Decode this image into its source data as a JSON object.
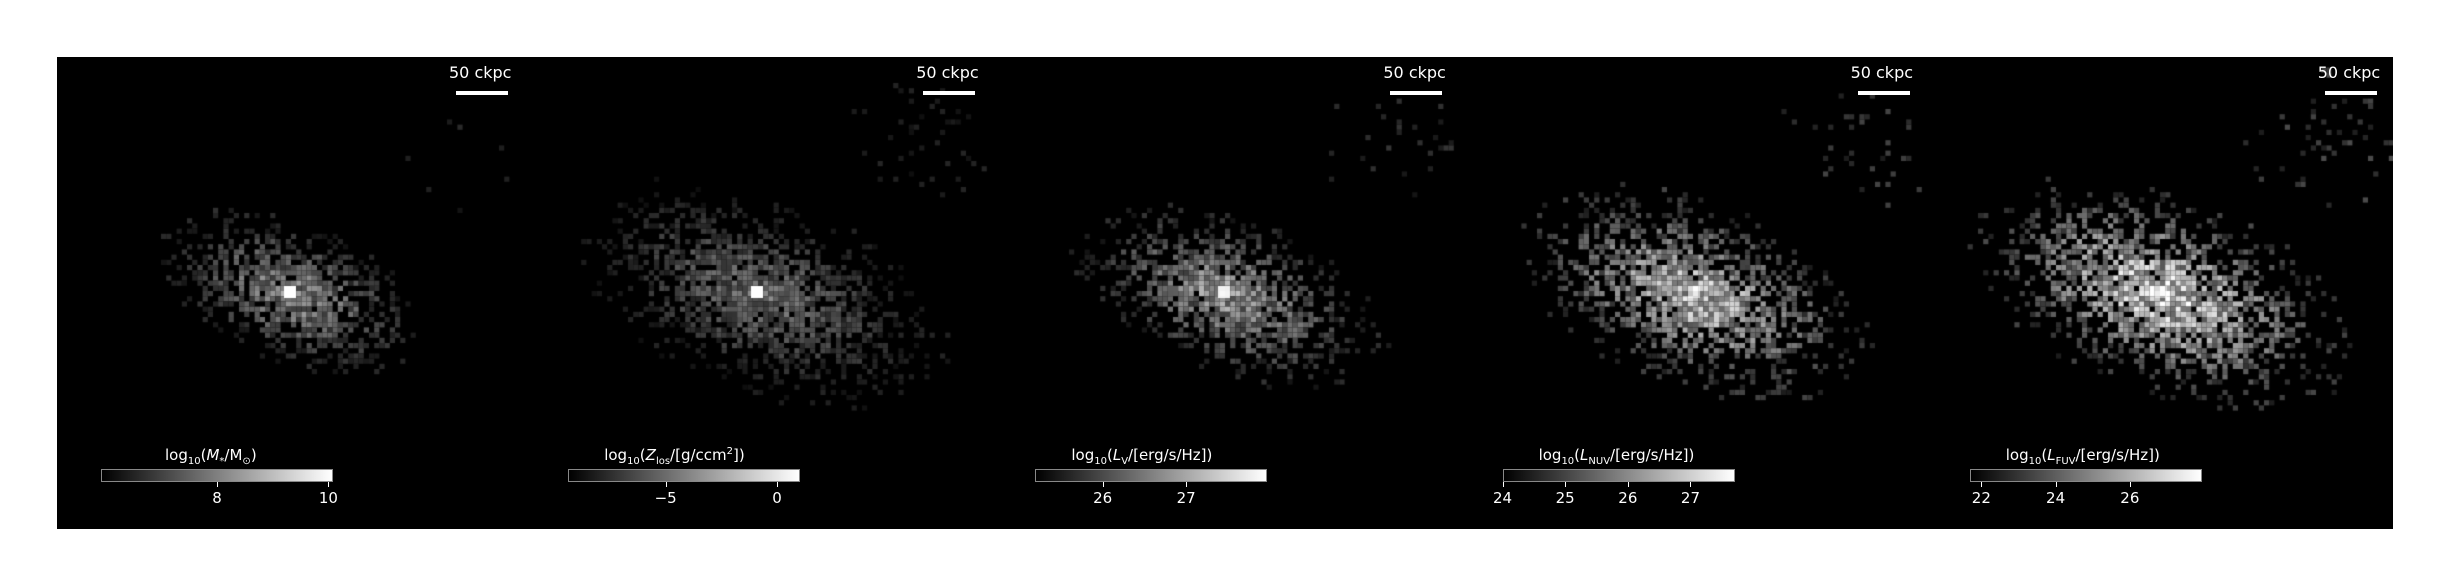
{
  "panels": [
    {
      "id": "mass",
      "scalebar": "50 ckpc",
      "colorbar_label": {
        "pre": "log",
        "sub": "10",
        "mid": "(M",
        "sub2": "*",
        "post": "/M",
        "sub3": "⊙",
        "end": ")"
      },
      "ticks": [
        {
          "value": "8",
          "frac": 0.5
        },
        {
          "value": "10",
          "frac": 0.98
        }
      ],
      "brightness": 0.55,
      "spread": 1.0,
      "core": 1.0
    },
    {
      "id": "metallicity",
      "scalebar": "50 ckpc",
      "colorbar_label": {
        "pre": "log",
        "sub": "10",
        "mid": "(Z",
        "sub2": "los",
        "post": "/[g/ccm",
        "sup": "2",
        "end": "])"
      },
      "ticks": [
        {
          "value": "−5",
          "frac": 0.42
        },
        {
          "value": "0",
          "frac": 0.9
        }
      ],
      "brightness": 0.42,
      "spread": 1.35,
      "core": 1.0
    },
    {
      "id": "v-band",
      "scalebar": "50 ckpc",
      "colorbar_label": {
        "pre": "log",
        "sub": "10",
        "mid": "(L",
        "sub2": "V",
        "post": "/[erg/s/Hz])",
        "end": ""
      },
      "ticks": [
        {
          "value": "26",
          "frac": 0.29
        },
        {
          "value": "27",
          "frac": 0.65
        }
      ],
      "brightness": 0.6,
      "spread": 1.15,
      "core": 0.9
    },
    {
      "id": "nuv",
      "scalebar": "50 ckpc",
      "colorbar_label": {
        "pre": "log",
        "sub": "10",
        "mid": "(L",
        "sub2": "NUV",
        "post": "/[erg/s/Hz])",
        "end": ""
      },
      "ticks": [
        {
          "value": "24",
          "frac": 0.0
        },
        {
          "value": "25",
          "frac": 0.27
        },
        {
          "value": "26",
          "frac": 0.54
        },
        {
          "value": "27",
          "frac": 0.81
        }
      ],
      "brightness": 0.78,
      "spread": 1.3,
      "core": 0.6
    },
    {
      "id": "fuv",
      "scalebar": "50 ckpc",
      "colorbar_label": {
        "pre": "log",
        "sub": "10",
        "mid": "(L",
        "sub2": "FUV",
        "post": "/[erg/s/Hz])",
        "end": ""
      },
      "ticks": [
        {
          "value": "22",
          "frac": 0.05
        },
        {
          "value": "24",
          "frac": 0.37
        },
        {
          "value": "26",
          "frac": 0.69
        }
      ],
      "brightness": 0.85,
      "spread": 1.4,
      "core": 0.5
    }
  ]
}
